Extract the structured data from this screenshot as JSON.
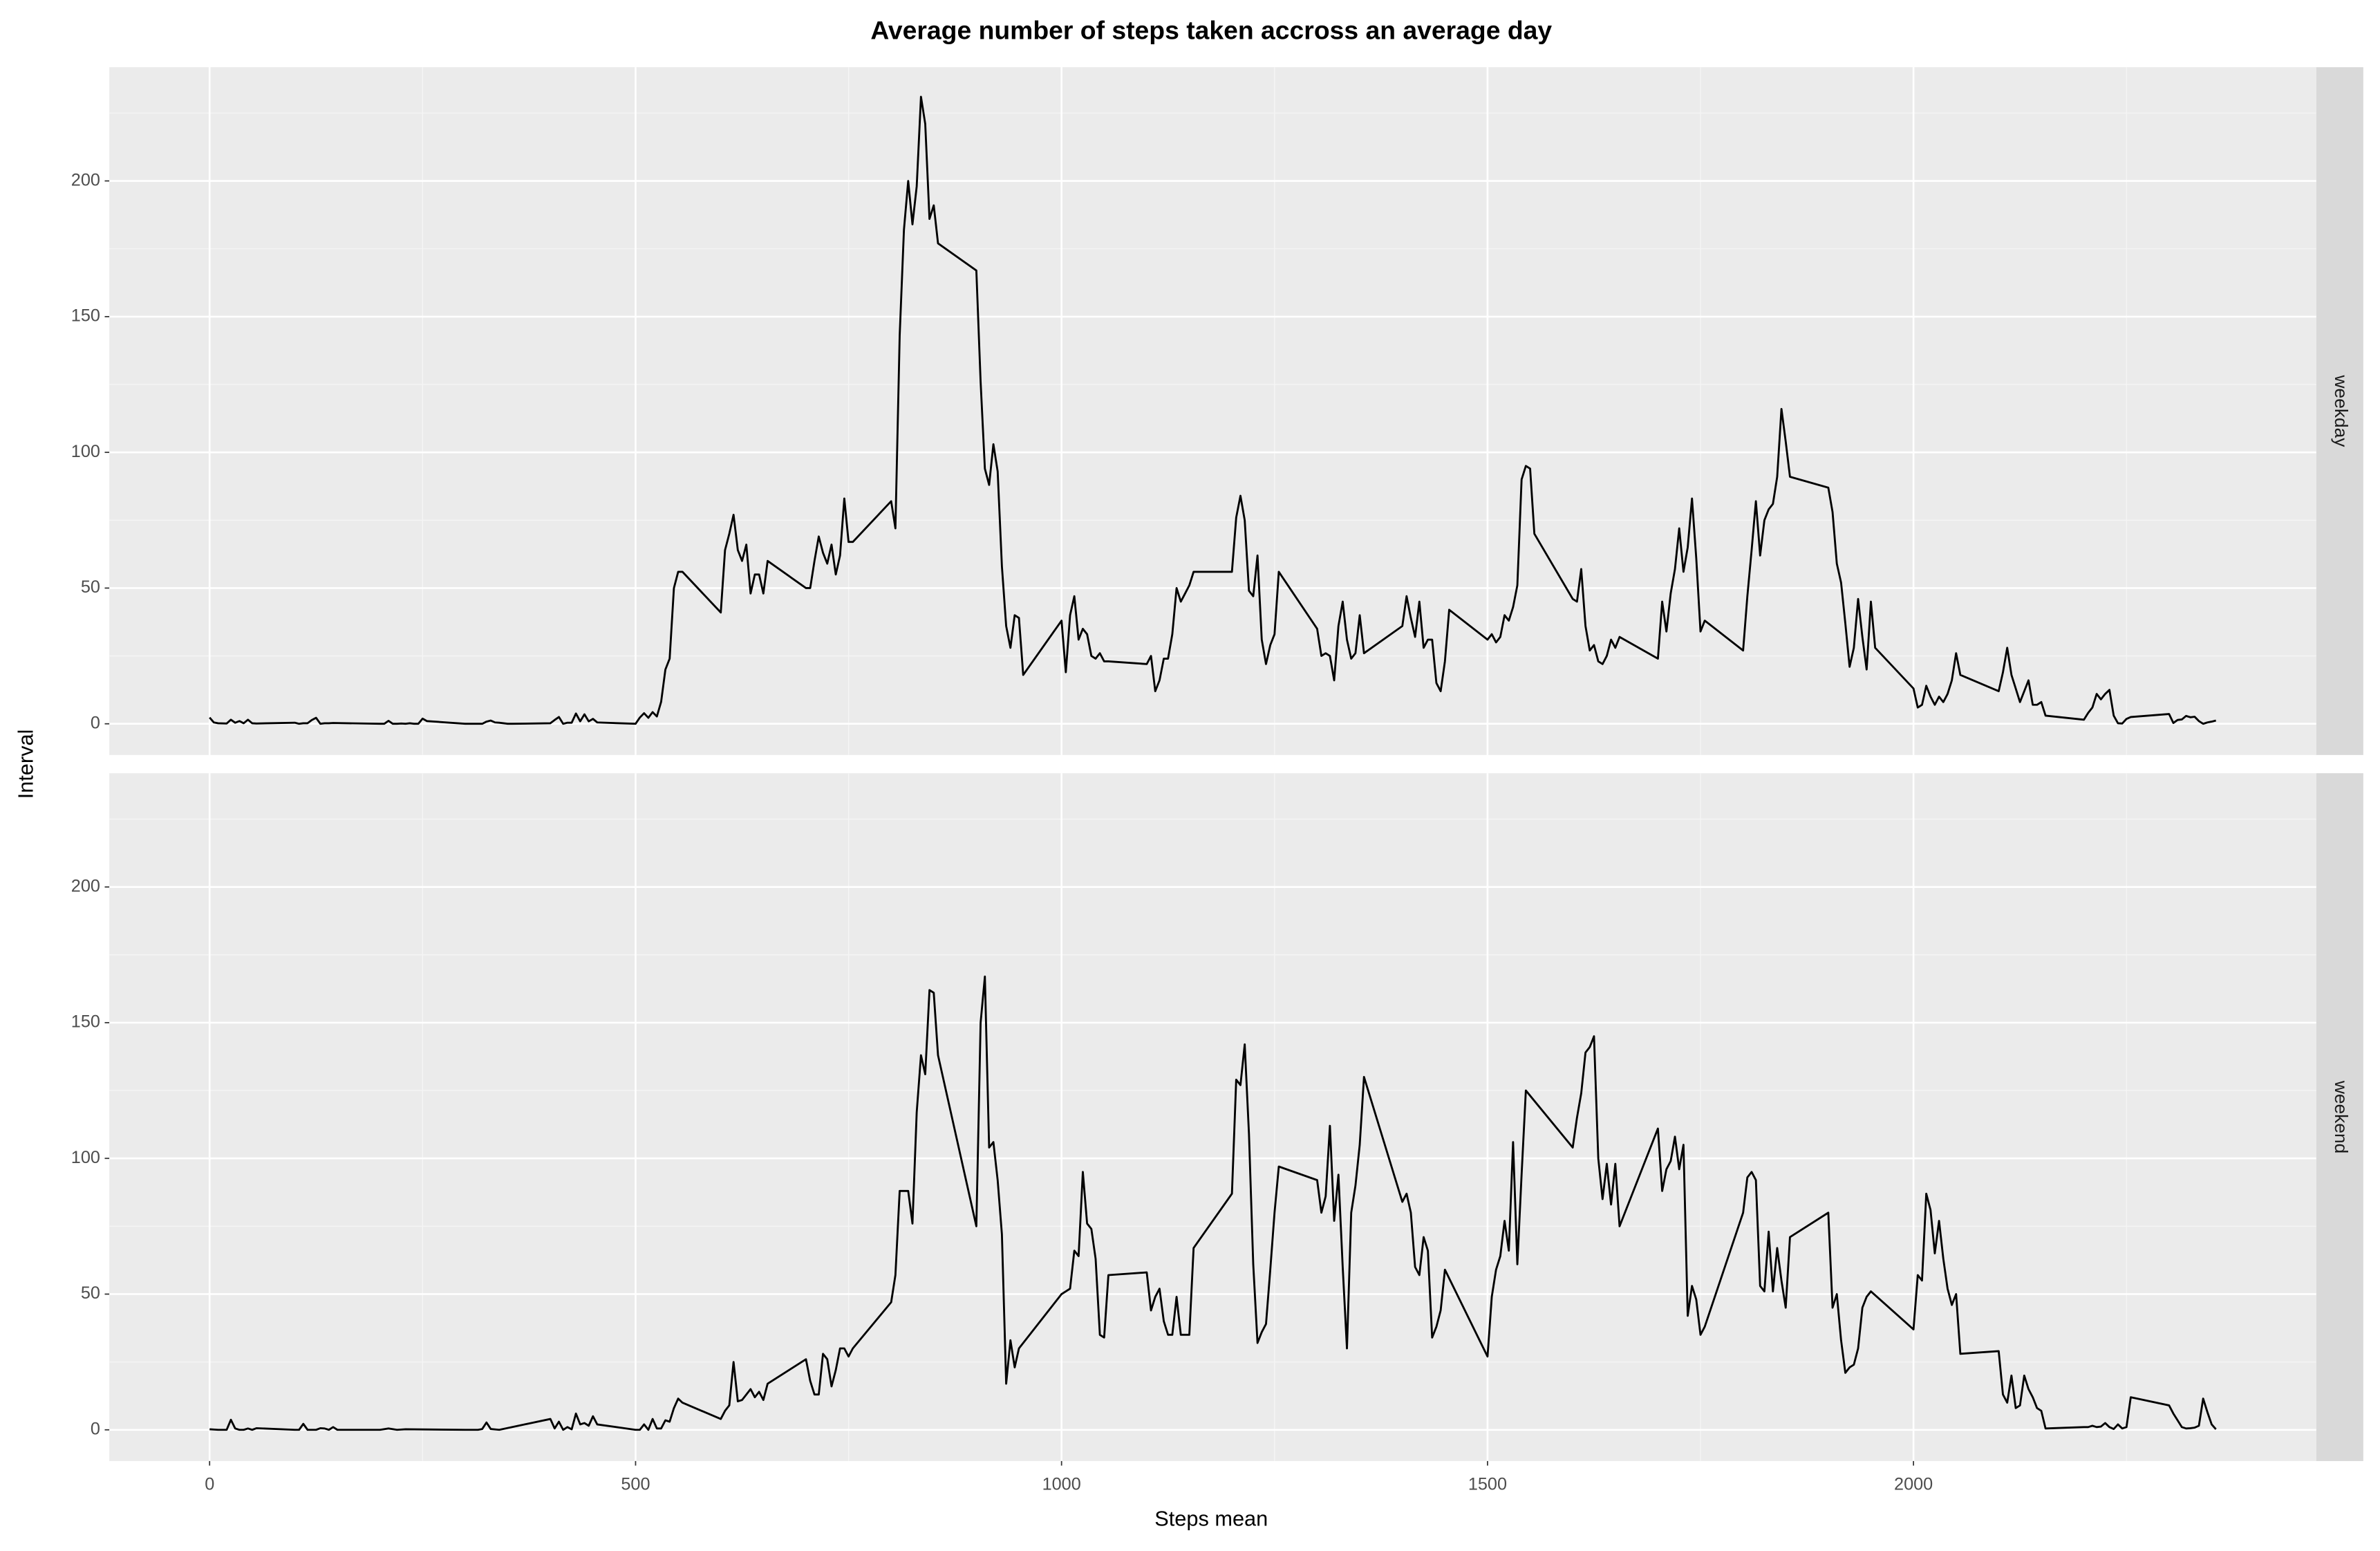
{
  "chart_data": {
    "type": "line",
    "title": "Average number of steps taken accross an average day",
    "xlabel": "Steps mean",
    "ylabel": "Interval",
    "xlim": [
      -117.75,
      2472.75
    ],
    "xticks": [
      0,
      500,
      1000,
      1500,
      2000
    ],
    "ylim": [
      -11.5,
      241.9
    ],
    "yticks": [
      0,
      50,
      100,
      150,
      200
    ],
    "grid": true,
    "color": "#000000",
    "panels": [
      {
        "strip": "weekday",
        "x": [
          0,
          5,
          10,
          20,
          25,
          30,
          35,
          40,
          45,
          50,
          55,
          100,
          105,
          110,
          115,
          120,
          125,
          130,
          135,
          140,
          145,
          200,
          205,
          210,
          215,
          220,
          225,
          230,
          235,
          240,
          245,
          250,
          255,
          300,
          310,
          320,
          325,
          330,
          335,
          340,
          350,
          355,
          400,
          405,
          410,
          415,
          420,
          425,
          430,
          435,
          440,
          445,
          450,
          455,
          500,
          505,
          510,
          515,
          520,
          525,
          530,
          535,
          540,
          545,
          550,
          555,
          600,
          605,
          610,
          615,
          620,
          625,
          630,
          635,
          640,
          645,
          650,
          655,
          700,
          705,
          710,
          715,
          720,
          725,
          730,
          735,
          740,
          745,
          750,
          755,
          800,
          805,
          810,
          815,
          820,
          825,
          830,
          835,
          840,
          845,
          850,
          855,
          900,
          905,
          910,
          915,
          920,
          925,
          930,
          935,
          940,
          945,
          950,
          955,
          1000,
          1005,
          1010,
          1015,
          1020,
          1025,
          1030,
          1035,
          1040,
          1045,
          1050,
          1055,
          1100,
          1105,
          1110,
          1115,
          1120,
          1125,
          1130,
          1135,
          1140,
          1145,
          1150,
          1155,
          1200,
          1205,
          1210,
          1215,
          1220,
          1225,
          1230,
          1235,
          1240,
          1245,
          1250,
          1255,
          1300,
          1305,
          1310,
          1315,
          1320,
          1325,
          1330,
          1335,
          1340,
          1345,
          1350,
          1355,
          1400,
          1405,
          1410,
          1415,
          1420,
          1425,
          1430,
          1435,
          1440,
          1445,
          1450,
          1455,
          1500,
          1505,
          1510,
          1515,
          1520,
          1525,
          1530,
          1535,
          1540,
          1545,
          1550,
          1555,
          1600,
          1605,
          1610,
          1615,
          1620,
          1625,
          1630,
          1635,
          1640,
          1645,
          1650,
          1655,
          1700,
          1705,
          1710,
          1715,
          1720,
          1725,
          1730,
          1735,
          1740,
          1745,
          1750,
          1755,
          1800,
          1805,
          1810,
          1815,
          1820,
          1825,
          1830,
          1835,
          1840,
          1845,
          1850,
          1855,
          1900,
          1905,
          1910,
          1915,
          1920,
          1925,
          1930,
          1935,
          1940,
          1945,
          1950,
          1955,
          2000,
          2005,
          2010,
          2015,
          2020,
          2025,
          2030,
          2035,
          2040,
          2045,
          2050,
          2055,
          2100,
          2105,
          2110,
          2115,
          2120,
          2125,
          2130,
          2135,
          2140,
          2145,
          2150,
          2155,
          2200,
          2205,
          2210,
          2215,
          2220,
          2225,
          2230,
          2235,
          2240,
          2245,
          2250,
          2255,
          2300,
          2305,
          2310,
          2315,
          2320,
          2325,
          2330,
          2335,
          2340,
          2345,
          2350,
          2355
        ],
        "values": [
          2.3,
          0.5,
          0.2,
          0.1,
          1.5,
          0.4,
          1,
          0.2,
          1.5,
          0.2,
          0.1,
          0.4,
          0,
          0.2,
          0.2,
          1.4,
          2.2,
          0,
          0.2,
          0.2,
          0.3,
          0,
          0,
          1.1,
          0,
          0,
          0.1,
          0,
          0.2,
          0,
          0,
          1.9,
          1,
          0,
          0,
          0,
          0.8,
          1.2,
          0.5,
          0.4,
          0,
          0,
          0.2,
          1.4,
          2.5,
          0,
          0.4,
          0.4,
          3.8,
          0.9,
          3.5,
          0.9,
          1.8,
          0.5,
          0,
          2.3,
          3.9,
          2.2,
          4.3,
          2.7,
          8.1,
          20,
          24,
          50,
          56,
          56,
          41,
          64,
          70,
          77,
          64,
          60,
          66,
          48,
          55,
          55,
          48,
          60,
          50,
          50,
          60,
          69,
          63,
          59,
          66,
          55,
          62,
          83,
          67,
          67,
          82,
          72,
          143,
          182,
          200,
          184,
          198,
          231,
          221,
          186,
          191,
          177,
          167,
          126,
          94,
          88,
          103,
          93,
          58,
          36,
          28,
          40,
          39,
          18,
          38,
          19,
          40,
          47,
          31,
          35,
          33,
          25,
          24,
          26,
          23,
          23,
          22,
          25,
          12,
          16,
          24,
          24,
          33,
          50,
          45,
          48,
          51,
          56,
          56,
          76,
          84,
          75,
          49,
          47,
          62,
          31,
          22,
          29,
          33,
          56,
          35,
          25,
          26,
          25,
          16,
          36,
          45,
          31,
          24,
          26,
          40,
          26,
          36,
          47,
          39,
          32,
          45,
          28,
          31,
          31,
          15,
          12,
          23,
          42,
          31,
          33,
          30,
          32,
          40,
          38,
          43,
          51,
          90,
          95,
          94,
          70,
          46,
          45,
          57,
          36,
          27,
          29,
          23,
          22,
          25,
          31,
          28,
          32,
          24,
          45,
          34,
          48,
          57,
          72,
          56,
          65,
          83,
          61,
          34,
          38,
          27,
          47,
          64,
          82,
          62,
          75,
          79,
          81,
          91,
          116,
          104,
          91,
          87,
          78,
          59,
          52,
          37,
          21,
          28,
          46,
          32,
          20,
          45,
          28,
          13,
          6,
          7,
          14,
          10,
          7,
          10,
          8,
          11,
          16,
          26,
          18,
          12,
          19,
          28,
          18,
          13,
          8,
          12,
          16,
          7,
          7,
          8,
          3,
          1.5,
          4,
          6,
          11,
          9,
          11,
          12.5,
          3,
          0.2,
          0.1,
          1.8,
          2.5,
          3.6,
          0.3,
          1.4,
          1.6,
          2.9,
          2.4,
          2.6,
          1,
          0,
          0.5,
          0.8,
          1.2
        ]
      },
      {
        "strip": "weekend",
        "x": [
          0,
          10,
          20,
          25,
          30,
          35,
          40,
          45,
          50,
          55,
          100,
          105,
          110,
          115,
          120,
          125,
          130,
          135,
          140,
          145,
          150,
          200,
          210,
          220,
          230,
          300,
          315,
          320,
          325,
          330,
          340,
          400,
          405,
          410,
          415,
          420,
          425,
          430,
          435,
          440,
          445,
          450,
          455,
          500,
          505,
          510,
          515,
          520,
          525,
          530,
          535,
          540,
          545,
          550,
          555,
          600,
          605,
          610,
          615,
          620,
          625,
          630,
          635,
          640,
          645,
          650,
          655,
          700,
          705,
          710,
          715,
          720,
          725,
          730,
          735,
          740,
          745,
          750,
          755,
          800,
          805,
          810,
          815,
          820,
          825,
          830,
          835,
          840,
          845,
          850,
          855,
          900,
          905,
          910,
          915,
          920,
          925,
          930,
          935,
          940,
          945,
          950,
          1000,
          1005,
          1010,
          1015,
          1020,
          1025,
          1030,
          1035,
          1040,
          1045,
          1050,
          1055,
          1100,
          1105,
          1110,
          1115,
          1120,
          1125,
          1130,
          1135,
          1140,
          1145,
          1150,
          1155,
          1200,
          1205,
          1210,
          1215,
          1220,
          1225,
          1230,
          1235,
          1240,
          1245,
          1250,
          1255,
          1300,
          1305,
          1310,
          1315,
          1320,
          1325,
          1330,
          1335,
          1340,
          1345,
          1350,
          1355,
          1400,
          1405,
          1410,
          1415,
          1420,
          1425,
          1430,
          1435,
          1440,
          1445,
          1450,
          1500,
          1505,
          1510,
          1515,
          1520,
          1525,
          1530,
          1535,
          1540,
          1545,
          1600,
          1605,
          1610,
          1615,
          1620,
          1625,
          1630,
          1635,
          1640,
          1645,
          1650,
          1655,
          1700,
          1705,
          1710,
          1715,
          1720,
          1725,
          1730,
          1735,
          1740,
          1745,
          1750,
          1755,
          1800,
          1805,
          1810,
          1815,
          1820,
          1825,
          1830,
          1835,
          1840,
          1845,
          1850,
          1855,
          1900,
          1905,
          1910,
          1915,
          1920,
          1925,
          1930,
          1935,
          1940,
          1945,
          1950,
          2000,
          2005,
          2010,
          2015,
          2020,
          2025,
          2030,
          2035,
          2040,
          2045,
          2050,
          2055,
          2100,
          2105,
          2110,
          2115,
          2120,
          2125,
          2130,
          2135,
          2140,
          2145,
          2150,
          2155,
          2200,
          2205,
          2210,
          2215,
          2220,
          2225,
          2230,
          2235,
          2240,
          2245,
          2250,
          2255,
          2300,
          2305,
          2310,
          2315,
          2320,
          2325,
          2330,
          2335,
          2340,
          2345,
          2350,
          2355
        ],
        "values": [
          0.2,
          0,
          0,
          3.7,
          0.5,
          0,
          0,
          0.5,
          0,
          0.6,
          0,
          0,
          2.2,
          0,
          0,
          0,
          0.6,
          0.5,
          0,
          1,
          0,
          0,
          0.5,
          0,
          0.2,
          0,
          0,
          0.3,
          2.7,
          0.3,
          0,
          4,
          0.5,
          3,
          0,
          1,
          0.2,
          6,
          2,
          2.5,
          1.5,
          5,
          2,
          0,
          0,
          2,
          0,
          4,
          0.5,
          0.5,
          3.5,
          3,
          8,
          11.5,
          10,
          4,
          7,
          9,
          25,
          10.5,
          11,
          13,
          15,
          12,
          14,
          11,
          17,
          26,
          18,
          13,
          13,
          28,
          26,
          16,
          22,
          30,
          30,
          27,
          30,
          47,
          57,
          88,
          88,
          88,
          76,
          117,
          138,
          131,
          162,
          161,
          138,
          75,
          150,
          167,
          104,
          106,
          92,
          72,
          17,
          33,
          23,
          30,
          50,
          51,
          52,
          66,
          64,
          95,
          76,
          74,
          63,
          35,
          34,
          57,
          58,
          44,
          49,
          52,
          40,
          35,
          35,
          49,
          35,
          35,
          35,
          67,
          87,
          129,
          127,
          142,
          109,
          61,
          32,
          36,
          39,
          59,
          80,
          97,
          92,
          80,
          86,
          112,
          77,
          94,
          60,
          30,
          80,
          90,
          105,
          130,
          84,
          87,
          80,
          60,
          57,
          71,
          66,
          34,
          38,
          44,
          59,
          27,
          49,
          59,
          64,
          77,
          66,
          106,
          61,
          94,
          125,
          104,
          115,
          124,
          139,
          141,
          145,
          100,
          85,
          98,
          83,
          98,
          75,
          111,
          88,
          96,
          99,
          108,
          96,
          105,
          42,
          53,
          48,
          35,
          38,
          80,
          93,
          95,
          92,
          53,
          51,
          73,
          51,
          67,
          55,
          45,
          71,
          80,
          45,
          50,
          33,
          21,
          23,
          24,
          30,
          45,
          49,
          51,
          37,
          57,
          55,
          87,
          81,
          65,
          77,
          63,
          52,
          46,
          50,
          28,
          29,
          13,
          10,
          20,
          8,
          9,
          20,
          15,
          12,
          8,
          7,
          0.5,
          1,
          1,
          1.5,
          1,
          1.2,
          2.5,
          1,
          0.3,
          2,
          0.5,
          1,
          12,
          9,
          6,
          3.5,
          1,
          0.5,
          0.6,
          0.8,
          1.5,
          11.5,
          6.5,
          2,
          0.2
        ]
      }
    ]
  }
}
